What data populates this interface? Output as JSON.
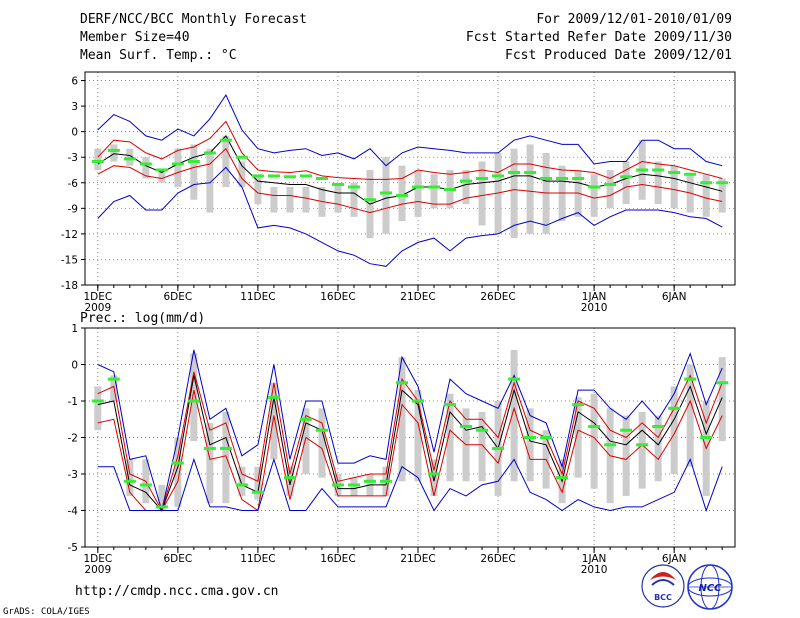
{
  "header": {
    "title": "DERF/NCC/BCC Monthly Forecast",
    "member_size": "Member Size=40",
    "variable": "Mean Surf. Temp.: °C",
    "period": "For 2009/12/01-2010/01/09",
    "fcst_started": "Fcst Started Refer Date 2009/11/30",
    "fcst_produced": "Fcst Produced Date 2009/12/01"
  },
  "footer": {
    "url": "http://cmdp.ncc.cma.gov.cn",
    "credit": "GrADS: COLA/IGES"
  },
  "logos": [
    {
      "name": "bcc-logo",
      "text": "BCC"
    },
    {
      "name": "ncc-logo",
      "text": "NCC"
    }
  ],
  "colors": {
    "mean": "#000000",
    "spread_inner": "#dd0000",
    "spread_outer": "#0000cc",
    "observed": "#33ee33",
    "box": "#cccccc",
    "grid": "#666666"
  },
  "chart_data": [
    {
      "type": "line",
      "title": "Mean Surf. Temp.: °C",
      "xlabel": "",
      "ylabel": "°C",
      "ylim": [
        -18,
        7
      ],
      "yticks": [
        -18,
        -15,
        -12,
        -9,
        -6,
        -3,
        0,
        3,
        6
      ],
      "x_days": [
        1,
        2,
        3,
        4,
        5,
        6,
        7,
        8,
        9,
        10,
        11,
        12,
        13,
        14,
        15,
        16,
        17,
        18,
        19,
        20,
        21,
        22,
        23,
        24,
        25,
        26,
        27,
        28,
        29,
        30,
        31,
        32,
        33,
        34,
        35,
        36,
        37,
        38,
        39,
        40
      ],
      "xticks": [
        {
          "day": 1,
          "label": "1DEC",
          "sub": "2009"
        },
        {
          "day": 6,
          "label": "6DEC",
          "sub": ""
        },
        {
          "day": 11,
          "label": "11DEC",
          "sub": ""
        },
        {
          "day": 16,
          "label": "16DEC",
          "sub": ""
        },
        {
          "day": 21,
          "label": "21DEC",
          "sub": ""
        },
        {
          "day": 26,
          "label": "26DEC",
          "sub": ""
        },
        {
          "day": 32,
          "label": "1JAN",
          "sub": "2010"
        },
        {
          "day": 37,
          "label": "6JAN",
          "sub": ""
        }
      ],
      "series": [
        {
          "name": "ensemble-max",
          "color": "#0000cc",
          "values": [
            0.2,
            2.0,
            1.2,
            -0.5,
            -1.0,
            0.3,
            -0.5,
            1.5,
            4.3,
            0.2,
            -2.0,
            -2.5,
            -2.2,
            -2.0,
            -2.8,
            -2.5,
            -3.2,
            -2.0,
            -4.0,
            -2.5,
            -1.8,
            -2.0,
            -2.2,
            -2.5,
            -2.5,
            -2.5,
            -1.0,
            -0.5,
            -1.0,
            -1.5,
            -1.5,
            -3.8,
            -3.5,
            -3.5,
            -1.0,
            -1.0,
            -2.0,
            -2.0,
            -3.5,
            -4.0
          ]
        },
        {
          "name": "spread-upper",
          "color": "#dd0000",
          "values": [
            -3.0,
            -1.0,
            -1.2,
            -2.5,
            -3.2,
            -2.2,
            -1.8,
            -0.8,
            1.2,
            -2.5,
            -4.5,
            -4.7,
            -4.8,
            -4.6,
            -5.2,
            -5.4,
            -5.5,
            -5.6,
            -5.6,
            -5.5,
            -4.5,
            -4.8,
            -5.0,
            -4.8,
            -4.5,
            -4.8,
            -3.8,
            -3.8,
            -4.2,
            -4.5,
            -4.6,
            -4.8,
            -5.5,
            -4.5,
            -3.5,
            -3.8,
            -4.0,
            -4.5,
            -5.0,
            -5.5
          ]
        },
        {
          "name": "ensemble-mean",
          "color": "#000000",
          "values": [
            -3.8,
            -2.6,
            -2.8,
            -4.0,
            -4.8,
            -3.8,
            -3.0,
            -2.5,
            -0.5,
            -4.0,
            -5.8,
            -6.0,
            -6.2,
            -6.2,
            -6.8,
            -7.2,
            -7.2,
            -8.5,
            -7.8,
            -7.5,
            -6.5,
            -6.5,
            -6.8,
            -6.2,
            -6.0,
            -5.8,
            -5.2,
            -5.2,
            -5.8,
            -5.8,
            -6.0,
            -6.5,
            -6.2,
            -5.5,
            -5.0,
            -5.2,
            -5.5,
            -6.0,
            -6.5,
            -7.0
          ]
        },
        {
          "name": "spread-lower",
          "color": "#dd0000",
          "values": [
            -5.0,
            -4.0,
            -4.2,
            -5.2,
            -5.5,
            -4.8,
            -4.2,
            -3.8,
            -2.0,
            -5.5,
            -7.2,
            -7.5,
            -7.5,
            -7.8,
            -8.2,
            -8.5,
            -9.0,
            -9.5,
            -9.0,
            -8.5,
            -8.2,
            -8.5,
            -8.5,
            -7.8,
            -7.5,
            -7.2,
            -6.8,
            -7.0,
            -7.2,
            -7.2,
            -7.2,
            -7.8,
            -7.5,
            -6.5,
            -6.2,
            -6.5,
            -6.8,
            -7.2,
            -7.8,
            -8.2
          ]
        },
        {
          "name": "ensemble-min",
          "color": "#0000cc",
          "values": [
            -10.2,
            -8.2,
            -7.5,
            -9.2,
            -9.2,
            -7.2,
            -6.2,
            -6.0,
            -4.2,
            -6.5,
            -11.3,
            -11.0,
            -11.3,
            -12.0,
            -13.0,
            -14.0,
            -14.5,
            -15.5,
            -15.8,
            -14.0,
            -13.0,
            -12.5,
            -14.0,
            -12.5,
            -12.2,
            -12.0,
            -11.0,
            -10.5,
            -11.0,
            -10.2,
            -9.5,
            -11.0,
            -10.0,
            -9.2,
            -9.2,
            -9.2,
            -9.5,
            -10.0,
            -10.2,
            -11.2
          ]
        }
      ],
      "boxes": [
        [
          -4.5,
          -2.0
        ],
        [
          -3.5,
          -1.5
        ],
        [
          -4.0,
          -2.0
        ],
        [
          -5.5,
          -3.0
        ],
        [
          -6.0,
          -4.5
        ],
        [
          -6.5,
          -2.0
        ],
        [
          -8.0,
          -1.5
        ],
        [
          -9.5,
          -2.0
        ],
        [
          -6.5,
          -0.5
        ],
        [
          -6.5,
          -3.5
        ],
        [
          -8.5,
          -5.0
        ],
        [
          -9.5,
          -6.5
        ],
        [
          -9.5,
          -6.5
        ],
        [
          -9.5,
          -6.5
        ],
        [
          -10.0,
          -6.5
        ],
        [
          -9.5,
          -6.0
        ],
        [
          -10.0,
          -6.0
        ],
        [
          -12.5,
          -4.5
        ],
        [
          -12.0,
          -3.0
        ],
        [
          -10.5,
          -4.0
        ],
        [
          -10.0,
          -4.5
        ],
        [
          -9.0,
          -5.0
        ],
        [
          -9.0,
          -4.5
        ],
        [
          -8.5,
          -4.5
        ],
        [
          -11.0,
          -3.5
        ],
        [
          -12.0,
          -2.5
        ],
        [
          -12.5,
          -2.0
        ],
        [
          -12.0,
          -1.5
        ],
        [
          -12.0,
          -2.5
        ],
        [
          -10.5,
          -4.0
        ],
        [
          -10.0,
          -4.5
        ],
        [
          -10.0,
          -5.0
        ],
        [
          -9.0,
          -4.5
        ],
        [
          -8.5,
          -3.5
        ],
        [
          -8.0,
          -1.0
        ],
        [
          -8.5,
          -3.5
        ],
        [
          -9.0,
          -4.0
        ],
        [
          -9.5,
          -5.0
        ],
        [
          -10.0,
          -5.0
        ],
        [
          -9.5,
          -5.5
        ]
      ],
      "observed": [
        -3.5,
        -2.2,
        -3.2,
        -3.8,
        -4.5,
        -3.8,
        -3.5,
        -2.5,
        -1.0,
        -3.0,
        -5.2,
        -5.2,
        -5.3,
        -5.2,
        -5.5,
        -6.2,
        -6.5,
        -8.0,
        -7.2,
        -7.5,
        -6.5,
        -6.5,
        -6.8,
        -5.8,
        -5.5,
        -5.2,
        -4.8,
        -4.8,
        -5.5,
        -5.5,
        -5.5,
        -6.5,
        -6.2,
        -5.3,
        -4.5,
        -4.5,
        -4.8,
        -5.0,
        -6.0,
        -6.0
      ]
    },
    {
      "type": "line",
      "title": "Prec.: log(mm/d)",
      "xlabel": "",
      "ylabel": "log(mm/d)",
      "ylim": [
        -5,
        1
      ],
      "yticks": [
        -5,
        -4,
        -3,
        -2,
        -1,
        0,
        1
      ],
      "x_days": [
        1,
        2,
        3,
        4,
        5,
        6,
        7,
        8,
        9,
        10,
        11,
        12,
        13,
        14,
        15,
        16,
        17,
        18,
        19,
        20,
        21,
        22,
        23,
        24,
        25,
        26,
        27,
        28,
        29,
        30,
        31,
        32,
        33,
        34,
        35,
        36,
        37,
        38,
        39,
        40
      ],
      "xticks": [
        {
          "day": 1,
          "label": "1DEC",
          "sub": "2009"
        },
        {
          "day": 6,
          "label": "6DEC",
          "sub": ""
        },
        {
          "day": 11,
          "label": "11DEC",
          "sub": ""
        },
        {
          "day": 16,
          "label": "16DEC",
          "sub": ""
        },
        {
          "day": 21,
          "label": "21DEC",
          "sub": ""
        },
        {
          "day": 26,
          "label": "26DEC",
          "sub": ""
        },
        {
          "day": 32,
          "label": "1JAN",
          "sub": "2010"
        },
        {
          "day": 37,
          "label": "6JAN",
          "sub": ""
        }
      ],
      "series": [
        {
          "name": "ensemble-max",
          "color": "#0000cc",
          "values": [
            0.0,
            -0.2,
            -2.6,
            -2.5,
            -4.0,
            -2.0,
            0.4,
            -1.5,
            -1.2,
            -2.5,
            -2.2,
            0.0,
            -2.6,
            -1.0,
            -1.0,
            -2.7,
            -2.7,
            -2.5,
            -2.6,
            0.2,
            -0.6,
            -2.4,
            -0.4,
            -0.8,
            -1.0,
            -1.2,
            -0.3,
            -1.4,
            -1.6,
            -2.8,
            -0.7,
            -0.7,
            -1.2,
            -1.5,
            -1.0,
            -1.5,
            -0.8,
            0.3,
            -1.1,
            -0.1
          ]
        },
        {
          "name": "spread-upper",
          "color": "#dd0000",
          "values": [
            -0.8,
            -0.6,
            -3.0,
            -3.2,
            -4.0,
            -2.5,
            -0.2,
            -1.8,
            -1.6,
            -3.0,
            -3.2,
            -0.5,
            -3.0,
            -1.4,
            -1.6,
            -3.2,
            -3.1,
            -3.0,
            -3.0,
            -0.4,
            -1.0,
            -2.9,
            -1.0,
            -1.5,
            -1.5,
            -2.0,
            -0.5,
            -1.8,
            -2.0,
            -3.0,
            -1.0,
            -1.2,
            -1.8,
            -2.0,
            -1.6,
            -2.0,
            -1.2,
            -0.3,
            -1.6,
            -0.5
          ]
        },
        {
          "name": "ensemble-mean",
          "color": "#000000",
          "values": [
            -1.1,
            -1.0,
            -3.3,
            -3.5,
            -4.0,
            -2.8,
            -0.3,
            -2.2,
            -2.0,
            -3.3,
            -3.5,
            -0.9,
            -3.3,
            -1.6,
            -1.8,
            -3.4,
            -3.4,
            -3.3,
            -3.3,
            -0.7,
            -1.1,
            -3.2,
            -1.3,
            -1.8,
            -1.7,
            -2.3,
            -0.7,
            -2.1,
            -2.2,
            -3.2,
            -1.3,
            -1.6,
            -2.1,
            -2.2,
            -1.8,
            -2.2,
            -1.5,
            -0.6,
            -1.9,
            -0.9
          ]
        },
        {
          "name": "spread-lower",
          "color": "#dd0000",
          "values": [
            -1.6,
            -1.5,
            -3.5,
            -4.0,
            -4.0,
            -3.2,
            -0.7,
            -2.6,
            -2.5,
            -3.7,
            -4.0,
            -1.4,
            -3.7,
            -2.0,
            -2.3,
            -3.6,
            -3.6,
            -3.6,
            -3.6,
            -1.1,
            -1.6,
            -3.6,
            -1.8,
            -2.2,
            -2.2,
            -2.7,
            -1.2,
            -2.6,
            -2.6,
            -3.5,
            -1.8,
            -2.0,
            -2.5,
            -2.6,
            -2.2,
            -2.6,
            -1.9,
            -1.0,
            -2.3,
            -1.4
          ]
        },
        {
          "name": "ensemble-min",
          "color": "#0000cc",
          "values": [
            -2.8,
            -2.8,
            -4.0,
            -4.0,
            -4.0,
            -4.0,
            -2.6,
            -3.9,
            -3.9,
            -4.0,
            -4.0,
            -2.6,
            -4.0,
            -4.0,
            -3.4,
            -3.9,
            -3.9,
            -3.9,
            -3.9,
            -2.8,
            -3.1,
            -4.0,
            -3.4,
            -3.6,
            -3.3,
            -3.2,
            -2.6,
            -3.5,
            -3.7,
            -4.0,
            -3.7,
            -3.9,
            -4.0,
            -3.9,
            -3.9,
            -3.7,
            -3.5,
            -2.6,
            -4.0,
            -2.8
          ]
        }
      ],
      "boxes": [
        [
          -1.8,
          -0.6
        ],
        [
          -1.0,
          -0.3
        ],
        [
          -3.6,
          -2.6
        ],
        [
          -3.8,
          -2.6
        ],
        [
          -4.0,
          -3.3
        ],
        [
          -3.9,
          -2.0
        ],
        [
          -2.1,
          0.3
        ],
        [
          -3.8,
          -1.6
        ],
        [
          -3.8,
          -1.3
        ],
        [
          -3.6,
          -2.8
        ],
        [
          -3.7,
          -2.8
        ],
        [
          -2.6,
          -0.5
        ],
        [
          -3.6,
          -2.8
        ],
        [
          -3.0,
          -1.2
        ],
        [
          -3.1,
          -1.2
        ],
        [
          -3.6,
          -3.0
        ],
        [
          -3.6,
          -3.1
        ],
        [
          -3.6,
          -3.0
        ],
        [
          -3.6,
          -2.8
        ],
        [
          -3.2,
          0.2
        ],
        [
          -3.2,
          -0.7
        ],
        [
          -3.6,
          -2.6
        ],
        [
          -3.2,
          -0.8
        ],
        [
          -3.2,
          -1.2
        ],
        [
          -3.2,
          -1.3
        ],
        [
          -3.6,
          -1.0
        ],
        [
          -3.2,
          0.4
        ],
        [
          -3.2,
          -1.2
        ],
        [
          -3.4,
          -1.8
        ],
        [
          -3.8,
          -2.6
        ],
        [
          -3.1,
          -0.9
        ],
        [
          -3.4,
          -0.8
        ],
        [
          -3.8,
          -1.2
        ],
        [
          -3.6,
          -1.4
        ],
        [
          -3.4,
          -1.3
        ],
        [
          -3.2,
          -1.4
        ],
        [
          -3.0,
          -0.6
        ],
        [
          -2.8,
          0.0
        ],
        [
          -3.6,
          -1.0
        ],
        [
          -2.1,
          0.2
        ]
      ],
      "observed": [
        -1.0,
        -0.4,
        -3.2,
        -3.3,
        -3.9,
        -2.7,
        -1.0,
        -2.3,
        -2.3,
        -3.3,
        -3.5,
        -0.9,
        -3.1,
        -1.5,
        -1.8,
        -3.3,
        -3.3,
        -3.2,
        -3.2,
        -0.5,
        -1.0,
        -3.0,
        -1.1,
        -1.7,
        -1.8,
        -2.3,
        -0.4,
        -2.0,
        -2.0,
        -3.1,
        -1.1,
        -1.7,
        -2.2,
        -1.8,
        -2.2,
        -1.7,
        -1.2,
        -0.4,
        -2.0,
        -0.5
      ]
    }
  ]
}
